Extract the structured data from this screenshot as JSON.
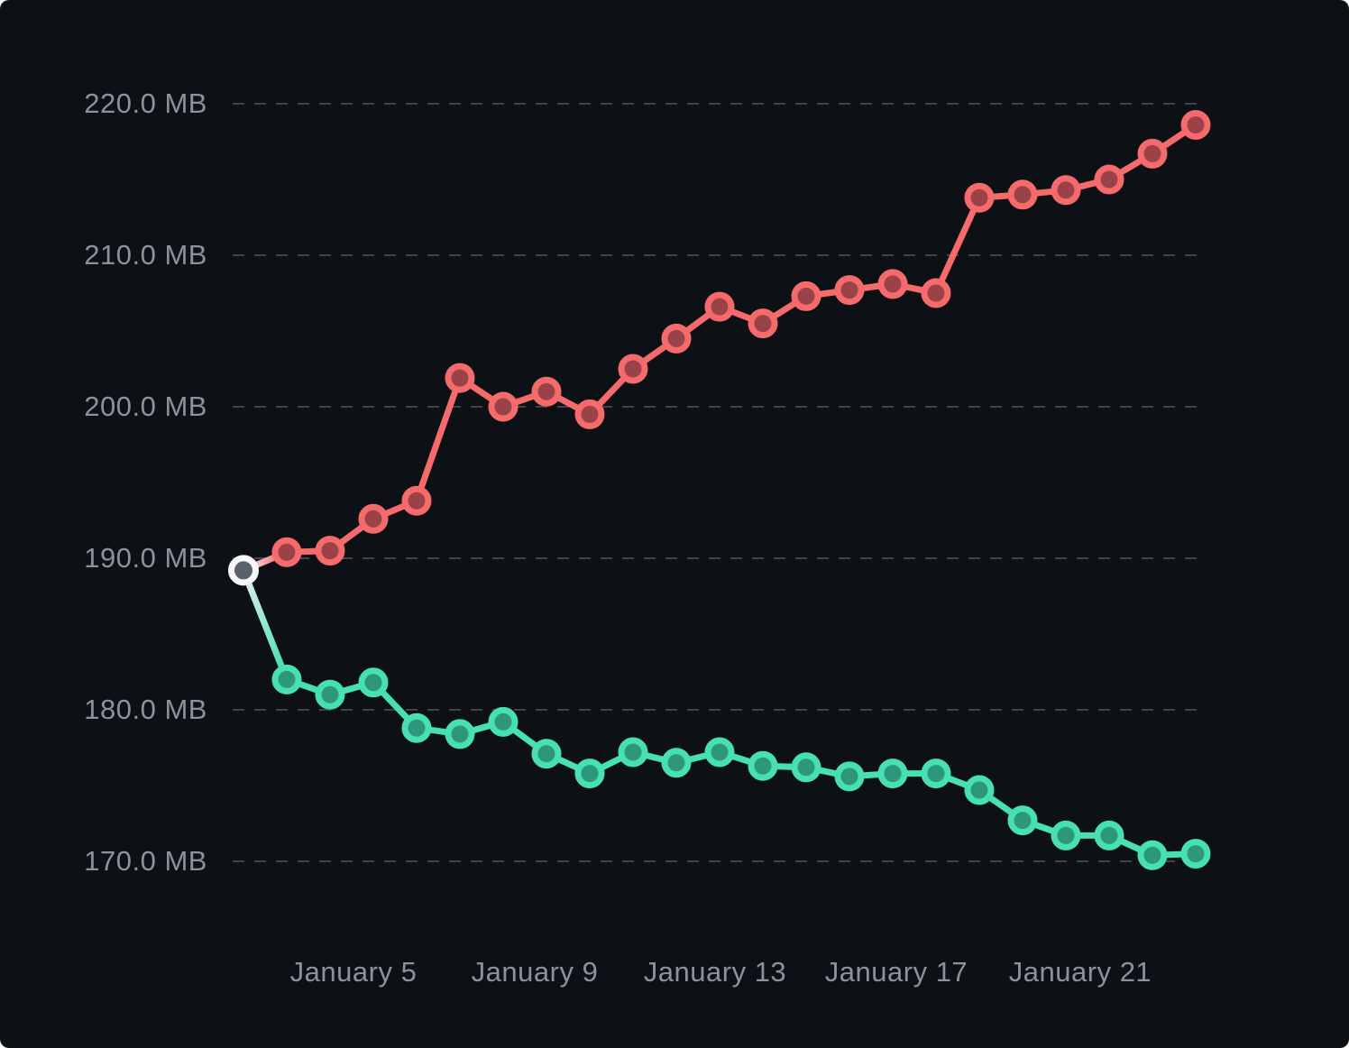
{
  "panel": {
    "background": "#0D1116",
    "grid_color": "#3F454E",
    "axis_label_color": "#8A929D"
  },
  "chart_data": {
    "type": "line",
    "title": "",
    "xlabel": "",
    "ylabel": "",
    "unit": "MB",
    "grid": "horizontal-dashed",
    "legend": "none",
    "ylim": [
      165,
      222
    ],
    "x": [
      "January 2",
      "January 3",
      "January 4",
      "January 5",
      "January 6",
      "January 7",
      "January 8",
      "January 9",
      "January 10",
      "January 11",
      "January 12",
      "January 13",
      "January 14",
      "January 15",
      "January 16",
      "January 17",
      "January 18",
      "January 19",
      "January 20",
      "January 21",
      "January 22",
      "January 23",
      "January 24"
    ],
    "y_tick_values": [
      220,
      210,
      200,
      190,
      180,
      170
    ],
    "y_tick_labels": [
      "220.0 MB",
      "210.0 MB",
      "200.0 MB",
      "190.0 MB",
      "180.0 MB",
      "170.0 MB"
    ],
    "x_tick_indices": [
      3,
      7,
      11,
      15,
      19
    ],
    "x_tick_labels": [
      "January 5",
      "January 9",
      "January 13",
      "January 17",
      "January 21"
    ],
    "series": [
      {
        "name": "memory-increasing-red",
        "color": "#F56B6B",
        "marker_fill": "#9B4148",
        "values": [
          189.2,
          190.4,
          190.5,
          192.6,
          193.8,
          201.9,
          200.0,
          201.0,
          199.5,
          202.5,
          204.5,
          206.6,
          205.5,
          207.3,
          207.7,
          208.1,
          207.5,
          213.8,
          214.0,
          214.3,
          215.0,
          216.7,
          218.6
        ]
      },
      {
        "name": "memory-decreasing-teal",
        "color": "#47E0B1",
        "marker_fill": "#2E967C",
        "values": [
          189.2,
          182.0,
          181.0,
          181.8,
          178.8,
          178.4,
          179.2,
          177.1,
          175.8,
          177.2,
          176.5,
          177.2,
          176.3,
          176.2,
          175.6,
          175.8,
          175.8,
          174.7,
          172.7,
          171.7,
          171.7,
          170.4,
          170.5
        ]
      }
    ],
    "shared_start_point": {
      "x": "January 2",
      "value": 189.2,
      "ring_color": "#F5F7F9",
      "fill_color": "#59626B"
    }
  }
}
